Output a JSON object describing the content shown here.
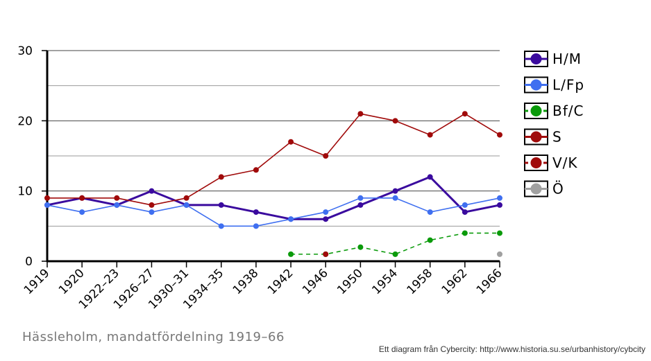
{
  "caption": "Hässleholm, mandatfördelning 1919–66",
  "credit": "Ett diagram från Cybercity: http://www.historia.su.se/urbanhistory/cybcity",
  "chart_data": {
    "type": "line",
    "title": "",
    "xlabel": "",
    "ylabel": "",
    "categories": [
      "1919",
      "1920",
      "1922–23",
      "1926–27",
      "1930–31",
      "1934–35",
      "1938",
      "1942",
      "1946",
      "1950",
      "1954",
      "1958",
      "1962",
      "1966"
    ],
    "ylim": [
      0,
      30
    ],
    "yticks": [
      0,
      10,
      20,
      30
    ],
    "grid": true,
    "legend_position": "right",
    "series": [
      {
        "name": "H/M",
        "color": "#3a0a9e",
        "width": 3,
        "dashed": false,
        "values": [
          8,
          9,
          8,
          10,
          8,
          8,
          7,
          6,
          6,
          8,
          10,
          12,
          7,
          8
        ]
      },
      {
        "name": "L/Fp",
        "color": "#3f6ff0",
        "width": 1.6,
        "dashed": false,
        "values": [
          8,
          7,
          8,
          7,
          8,
          5,
          5,
          6,
          7,
          9,
          9,
          7,
          8,
          9
        ]
      },
      {
        "name": "Bf/C",
        "color": "#0a9a0a",
        "width": 1.6,
        "dashed": true,
        "values": [
          null,
          null,
          null,
          null,
          null,
          null,
          null,
          1,
          1,
          2,
          1,
          3,
          4,
          4
        ]
      },
      {
        "name": "S",
        "color": "#a00a0a",
        "width": 1.6,
        "dashed": false,
        "values": [
          9,
          9,
          9,
          8,
          9,
          12,
          13,
          17,
          15,
          21,
          20,
          18,
          21,
          18
        ]
      },
      {
        "name": "V/K",
        "color": "#a00a0a",
        "width": 1.6,
        "dashed": true,
        "values": [
          null,
          null,
          null,
          null,
          null,
          null,
          null,
          null,
          1,
          null,
          null,
          null,
          null,
          null
        ]
      },
      {
        "name": "Ö",
        "color": "#a0a0a0",
        "width": 1.6,
        "dashed": false,
        "values": [
          null,
          null,
          null,
          null,
          null,
          null,
          null,
          null,
          null,
          null,
          null,
          null,
          null,
          1
        ]
      }
    ]
  }
}
